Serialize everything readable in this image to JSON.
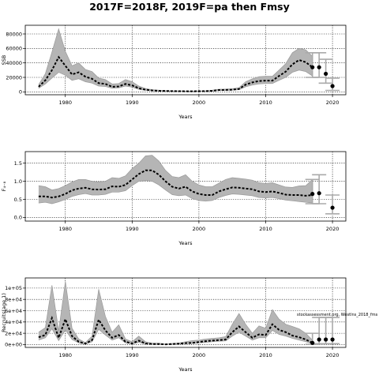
{
  "title": "2017F=2018F, 2019F=pa then Fmsy",
  "annotation": "stockassessment.org, Westlns_2018_fms",
  "chart_data": [
    {
      "type": "line",
      "xlabel": "Years",
      "ylabel": "SSB",
      "xlim": [
        1974,
        2022
      ],
      "ylim": [
        -4000,
        92000
      ],
      "xticks": [
        1980,
        1990,
        2000,
        2010,
        2020
      ],
      "yticks": [
        0,
        20000,
        40000,
        60000,
        80000
      ],
      "ytick_labels": [
        "0",
        "20000",
        "40000",
        "60000",
        "80000"
      ],
      "grid": true,
      "series": [
        {
          "role": "estimate",
          "x": [
            1976,
            1977,
            1978,
            1979,
            1980,
            1981,
            1982,
            1983,
            1984,
            1985,
            1986,
            1987,
            1988,
            1989,
            1990,
            1991,
            1992,
            1993,
            1994,
            1995,
            1996,
            1997,
            1998,
            1999,
            2000,
            2001,
            2002,
            2003,
            2004,
            2005,
            2006,
            2007,
            2008,
            2009,
            2010,
            2011,
            2012,
            2013,
            2014,
            2015,
            2016,
            2017
          ],
          "y": [
            7000,
            16000,
            30000,
            48000,
            36000,
            24000,
            27000,
            21000,
            18000,
            12000,
            11000,
            7000,
            7500,
            11000,
            9000,
            5000,
            3000,
            2000,
            1500,
            1200,
            1000,
            900,
            800,
            800,
            900,
            1000,
            1500,
            2500,
            2700,
            3000,
            4000,
            10000,
            13000,
            15000,
            15500,
            15500,
            22000,
            28000,
            38000,
            44000,
            41000,
            34000
          ],
          "lower": [
            5000,
            11000,
            19000,
            27000,
            23000,
            16000,
            18000,
            14000,
            12000,
            8000,
            7500,
            5000,
            5500,
            8000,
            6500,
            3500,
            2000,
            1400,
            1000,
            800,
            700,
            600,
            550,
            550,
            600,
            700,
            1000,
            1800,
            2000,
            2200,
            3000,
            7000,
            9500,
            11000,
            11500,
            11500,
            16000,
            20000,
            27000,
            30000,
            28000,
            22000
          ],
          "upper": [
            10000,
            25000,
            55000,
            87000,
            56000,
            36000,
            40000,
            31000,
            28000,
            19000,
            17000,
            11000,
            11500,
            17000,
            14000,
            8000,
            4600,
            3000,
            2300,
            1800,
            1500,
            1400,
            1200,
            1200,
            1300,
            1500,
            2300,
            3600,
            3900,
            4300,
            5800,
            14000,
            18000,
            21000,
            21500,
            21500,
            30000,
            39000,
            54000,
            60000,
            58000,
            49000
          ]
        },
        {
          "role": "forecast",
          "x": [
            2017,
            2018,
            2019,
            2020
          ],
          "y": [
            34000,
            34000,
            25000,
            8000
          ],
          "lower": [
            20000,
            20000,
            12000,
            2000
          ],
          "upper": [
            54000,
            54000,
            45000,
            19000
          ]
        }
      ]
    },
    {
      "type": "line",
      "xlabel": "Years",
      "ylabel": "F₄₋₈",
      "xlim": [
        1974,
        2022
      ],
      "ylim": [
        -0.1,
        1.82
      ],
      "xticks": [
        1980,
        1990,
        2000,
        2010,
        2020
      ],
      "yticks": [
        0,
        0.5,
        1.0,
        1.5
      ],
      "ytick_labels": [
        "0.0",
        "0.5",
        "1.0",
        "1.5"
      ],
      "grid": true,
      "series": [
        {
          "role": "estimate",
          "x": [
            1976,
            1977,
            1978,
            1979,
            1980,
            1981,
            1982,
            1983,
            1984,
            1985,
            1986,
            1987,
            1988,
            1989,
            1990,
            1991,
            1992,
            1993,
            1994,
            1995,
            1996,
            1997,
            1998,
            1999,
            2000,
            2001,
            2002,
            2003,
            2004,
            2005,
            2006,
            2007,
            2008,
            2009,
            2010,
            2011,
            2012,
            2013,
            2014,
            2015,
            2016,
            2017
          ],
          "y": [
            0.58,
            0.58,
            0.55,
            0.58,
            0.65,
            0.75,
            0.8,
            0.82,
            0.78,
            0.77,
            0.78,
            0.86,
            0.85,
            0.9,
            1.05,
            1.2,
            1.3,
            1.3,
            1.18,
            1.0,
            0.85,
            0.8,
            0.85,
            0.72,
            0.65,
            0.62,
            0.62,
            0.72,
            0.78,
            0.83,
            0.82,
            0.8,
            0.78,
            0.72,
            0.7,
            0.72,
            0.68,
            0.63,
            0.62,
            0.62,
            0.6,
            0.62
          ],
          "lower": [
            0.4,
            0.42,
            0.38,
            0.43,
            0.5,
            0.58,
            0.63,
            0.66,
            0.62,
            0.62,
            0.64,
            0.7,
            0.7,
            0.74,
            0.88,
            1.0,
            1.02,
            1.0,
            0.9,
            0.76,
            0.63,
            0.6,
            0.62,
            0.52,
            0.47,
            0.45,
            0.47,
            0.55,
            0.61,
            0.65,
            0.64,
            0.62,
            0.6,
            0.55,
            0.54,
            0.55,
            0.52,
            0.48,
            0.46,
            0.44,
            0.42,
            0.4
          ],
          "upper": [
            0.88,
            0.85,
            0.76,
            0.8,
            0.88,
            0.98,
            1.05,
            1.05,
            1.0,
            0.98,
            1.0,
            1.1,
            1.08,
            1.15,
            1.35,
            1.5,
            1.7,
            1.72,
            1.56,
            1.3,
            1.13,
            1.1,
            1.18,
            1.0,
            0.9,
            0.85,
            0.85,
            0.95,
            1.05,
            1.1,
            1.08,
            1.06,
            1.03,
            0.96,
            0.94,
            0.96,
            0.9,
            0.84,
            0.83,
            0.87,
            0.88,
            1.05
          ]
        },
        {
          "role": "forecast",
          "x": [
            2017,
            2018,
            2020
          ],
          "y": [
            0.65,
            0.67,
            0.27
          ],
          "lower": [
            0.38,
            0.38,
            0.1
          ],
          "upper": [
            1.05,
            1.18,
            0.62
          ]
        }
      ]
    },
    {
      "type": "line",
      "xlabel": "Years",
      "ylabel": "Recruits(age 1)",
      "xlim": [
        1974,
        2022
      ],
      "ylim": [
        -5000,
        118000
      ],
      "xticks": [
        1980,
        1990,
        2000,
        2010,
        2020
      ],
      "yticks": [
        0,
        20000,
        40000,
        60000,
        80000,
        100000
      ],
      "ytick_labels": [
        "0e+00",
        "2e+04",
        "4e+04",
        "6e+04",
        "8e+04",
        "1e+05"
      ],
      "grid": true,
      "series": [
        {
          "role": "estimate",
          "x": [
            1976,
            1977,
            1978,
            1979,
            1980,
            1981,
            1982,
            1983,
            1984,
            1985,
            1986,
            1987,
            1988,
            1989,
            1990,
            1991,
            1992,
            1993,
            1994,
            1995,
            1996,
            1997,
            1998,
            1999,
            2000,
            2001,
            2002,
            2003,
            2004,
            2005,
            2006,
            2007,
            2008,
            2009,
            2010,
            2011,
            2012,
            2013,
            2014,
            2015,
            2016,
            2017
          ],
          "y": [
            13000,
            17000,
            47000,
            12000,
            45000,
            15000,
            5000,
            1500,
            8000,
            44000,
            25000,
            12000,
            17000,
            5000,
            2000,
            7000,
            2000,
            1000,
            1000,
            500,
            1000,
            1500,
            2500,
            3000,
            4500,
            6000,
            7000,
            8000,
            9000,
            22000,
            32000,
            22000,
            12000,
            18000,
            17000,
            36000,
            26000,
            22000,
            16000,
            13000,
            9000,
            3000
          ],
          "lower": [
            8000,
            12000,
            28000,
            7000,
            26000,
            9000,
            3000,
            800,
            5000,
            27000,
            17000,
            8000,
            12000,
            3000,
            1000,
            4000,
            1000,
            500,
            500,
            300,
            500,
            800,
            1500,
            2000,
            3000,
            4000,
            5000,
            6000,
            6500,
            15000,
            22000,
            15000,
            8000,
            12000,
            12000,
            25000,
            18000,
            15000,
            11000,
            8000,
            5000,
            1500
          ],
          "upper": [
            22000,
            30000,
            105000,
            24000,
            112000,
            29000,
            10000,
            3500,
            15000,
            98000,
            50000,
            22000,
            35000,
            10000,
            5000,
            15000,
            5000,
            2500,
            2500,
            1000,
            2000,
            3000,
            5000,
            7000,
            8000,
            10000,
            11000,
            12000,
            14000,
            36000,
            55000,
            36000,
            20000,
            33000,
            29000,
            62000,
            45000,
            36000,
            32000,
            28000,
            20000,
            8000
          ]
        },
        {
          "role": "forecast",
          "x": [
            2017,
            2018,
            2019,
            2020
          ],
          "y": [
            3000,
            9000,
            9000,
            9000
          ],
          "lower": [
            500,
            1500,
            1500,
            1500
          ],
          "upper": [
            20000,
            48000,
            48000,
            48000
          ]
        }
      ]
    }
  ]
}
